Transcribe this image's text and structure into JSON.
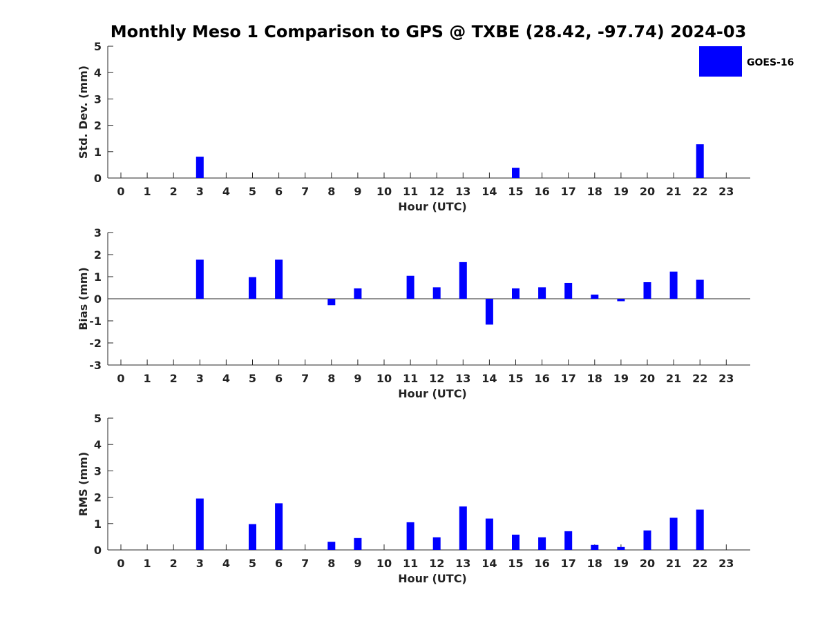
{
  "chart_data": {
    "title": "Monthly Meso 1 Comparison to GPS @ TXBE (28.42, -97.74) 2024-03",
    "type": "bar",
    "legend": {
      "label": "GOES-16",
      "position": "top-right",
      "color": "#0000ff"
    },
    "bar_color": "#0000ff",
    "panels": [
      {
        "type": "bar",
        "ylabel": "Std. Dev. (mm)",
        "xlabel": "Hour (UTC)",
        "ylim": [
          0,
          5
        ],
        "yticks": [
          0,
          1,
          2,
          3,
          4,
          5
        ],
        "categories": [
          0,
          1,
          2,
          3,
          4,
          5,
          6,
          7,
          8,
          9,
          10,
          11,
          12,
          13,
          14,
          15,
          16,
          17,
          18,
          19,
          20,
          21,
          22,
          23
        ],
        "values": [
          null,
          null,
          null,
          0.81,
          null,
          null,
          null,
          null,
          null,
          null,
          null,
          null,
          null,
          null,
          null,
          0.39,
          null,
          null,
          null,
          null,
          null,
          null,
          1.28,
          null
        ]
      },
      {
        "type": "bar",
        "ylabel": "Bias (mm)",
        "xlabel": "Hour (UTC)",
        "ylim": [
          -3,
          3
        ],
        "yticks": [
          -3,
          -2,
          -1,
          0,
          1,
          2,
          3
        ],
        "categories": [
          0,
          1,
          2,
          3,
          4,
          5,
          6,
          7,
          8,
          9,
          10,
          11,
          12,
          13,
          14,
          15,
          16,
          17,
          18,
          19,
          20,
          21,
          22,
          23
        ],
        "values": [
          null,
          null,
          null,
          1.77,
          null,
          0.98,
          1.77,
          null,
          -0.29,
          0.47,
          null,
          1.04,
          0.52,
          1.66,
          -1.17,
          0.47,
          0.52,
          0.72,
          0.19,
          -0.11,
          0.75,
          1.23,
          0.86,
          null
        ]
      },
      {
        "type": "bar",
        "ylabel": "RMS (mm)",
        "xlabel": "Hour (UTC)",
        "ylim": [
          0,
          5
        ],
        "yticks": [
          0,
          1,
          2,
          3,
          4,
          5
        ],
        "categories": [
          0,
          1,
          2,
          3,
          4,
          5,
          6,
          7,
          8,
          9,
          10,
          11,
          12,
          13,
          14,
          15,
          16,
          17,
          18,
          19,
          20,
          21,
          22,
          23
        ],
        "values": [
          null,
          null,
          null,
          1.95,
          null,
          0.98,
          1.77,
          null,
          0.31,
          0.45,
          null,
          1.05,
          0.48,
          1.65,
          1.19,
          0.58,
          0.48,
          0.71,
          0.19,
          0.11,
          0.74,
          1.22,
          1.53,
          null
        ]
      }
    ]
  }
}
